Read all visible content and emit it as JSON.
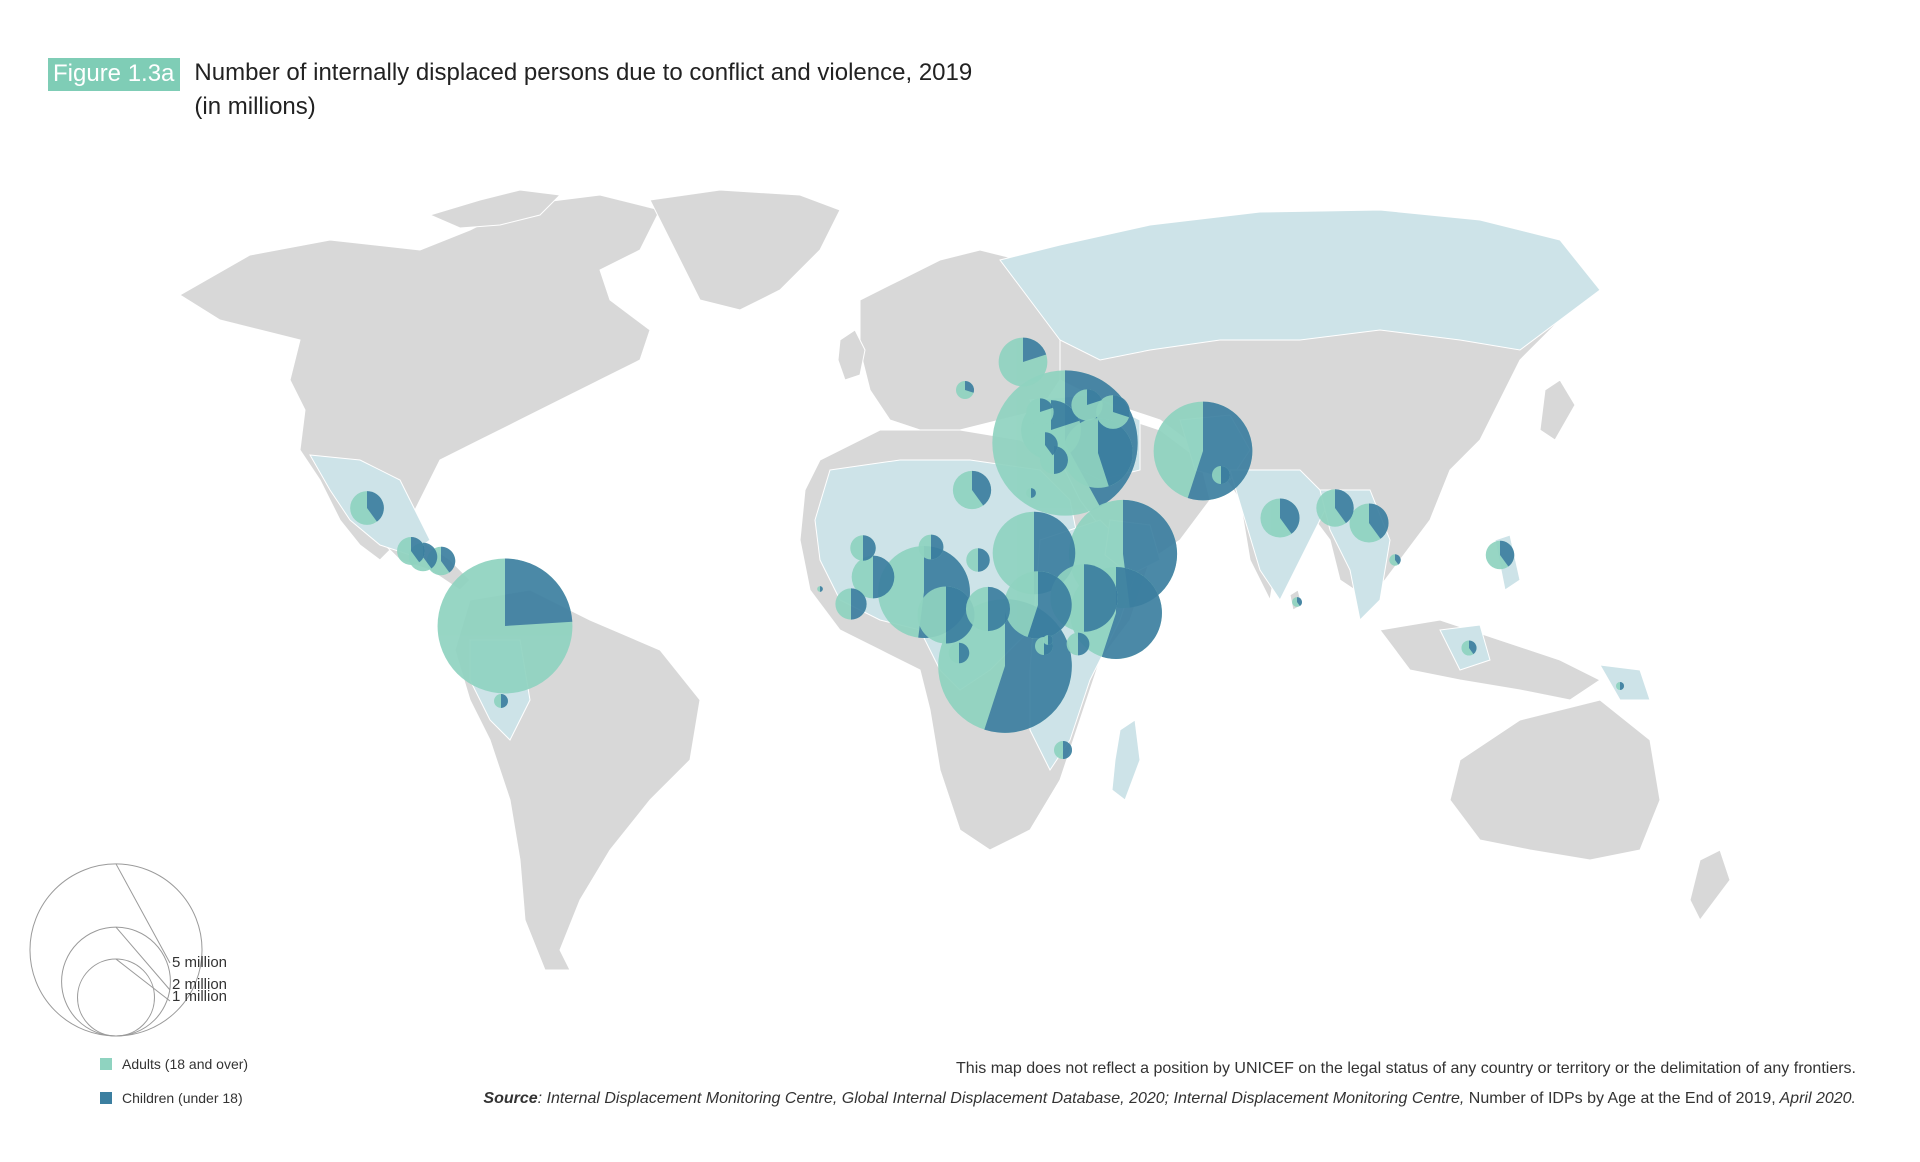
{
  "header": {
    "figure_label": "Figure 1.3a",
    "title_line1": "Number of internally displaced persons due to conflict and violence, 2019",
    "title_line2": "(in millions)"
  },
  "map": {
    "colors": {
      "land": "#d8d8d8",
      "highlight_country": "#cde3e8",
      "adults": "#8fd3c0",
      "children": "#3c7fa0",
      "border": "#ffffff"
    },
    "markers": [
      {
        "country": "Colombia",
        "total_millions": 5.6,
        "children_share": 0.24
      },
      {
        "country": "Syria",
        "total_millions": 6.5,
        "children_share": 0.42
      },
      {
        "country": "Democratic Republic of the Congo",
        "total_millions": 5.5,
        "children_share": 0.55
      },
      {
        "country": "Yemen",
        "total_millions": 3.6,
        "children_share": 0.48
      },
      {
        "country": "Afghanistan",
        "total_millions": 3.0,
        "children_share": 0.55
      },
      {
        "country": "Somalia",
        "total_millions": 2.6,
        "children_share": 0.55
      },
      {
        "country": "Nigeria",
        "total_millions": 2.6,
        "children_share": 0.52
      },
      {
        "country": "Sudan",
        "total_millions": 2.1,
        "children_share": 0.5
      },
      {
        "country": "Ethiopia",
        "total_millions": 1.4,
        "children_share": 0.5
      },
      {
        "country": "South Sudan",
        "total_millions": 1.4,
        "children_share": 0.55
      },
      {
        "country": "Iraq",
        "total_millions": 1.5,
        "children_share": 0.45
      },
      {
        "country": "Turkey",
        "total_millions": 1.1,
        "children_share": 0.2
      },
      {
        "country": "Cameroon",
        "total_millions": 1.0,
        "children_share": 0.5
      },
      {
        "country": "Central African Republic",
        "total_millions": 0.6,
        "children_share": 0.5
      },
      {
        "country": "Burkina Faso",
        "total_millions": 0.56,
        "children_share": 0.5
      },
      {
        "country": "Ukraine",
        "total_millions": 0.73,
        "children_share": 0.2
      },
      {
        "country": "Myanmar",
        "total_millions": 0.47,
        "children_share": 0.4
      },
      {
        "country": "Bangladesh",
        "total_millions": 0.43,
        "children_share": 0.4
      },
      {
        "country": "India",
        "total_millions": 0.47,
        "children_share": 0.4
      },
      {
        "country": "Libya",
        "total_millions": 0.45,
        "children_share": 0.4
      },
      {
        "country": "Mexico",
        "total_millions": 0.35,
        "children_share": 0.4
      },
      {
        "country": "Mali",
        "total_millions": 0.2,
        "children_share": 0.5
      },
      {
        "country": "Chad",
        "total_millions": 0.17,
        "children_share": 0.5
      },
      {
        "country": "Niger",
        "total_millions": 0.19,
        "children_share": 0.5
      },
      {
        "country": "Azerbaijan",
        "total_millions": 0.35,
        "children_share": 0.3
      },
      {
        "country": "Georgia",
        "total_millions": 0.3,
        "children_share": 0.2
      },
      {
        "country": "Cyprus",
        "total_millions": 0.23,
        "children_share": 0.2
      },
      {
        "country": "Palestine",
        "total_millions": 0.24,
        "children_share": 0.5
      },
      {
        "country": "Lebanon",
        "total_millions": 0.2,
        "children_share": 0.4
      },
      {
        "country": "Philippines",
        "total_millions": 0.25,
        "children_share": 0.4
      },
      {
        "country": "Honduras",
        "total_millions": 0.25,
        "children_share": 0.4
      },
      {
        "country": "El Salvador",
        "total_millions": 0.25,
        "children_share": 0.4
      },
      {
        "country": "Guatemala",
        "total_millions": 0.24,
        "children_share": 0.4
      },
      {
        "country": "Mozambique",
        "total_millions": 0.1,
        "children_share": 0.5
      },
      {
        "country": "Burundi",
        "total_millions": 0.1,
        "children_share": 0.5
      },
      {
        "country": "Kenya",
        "total_millions": 0.16,
        "children_share": 0.5
      },
      {
        "country": "Uganda",
        "total_millions": 0.03,
        "children_share": 0.5
      },
      {
        "country": "Congo",
        "total_millions": 0.13,
        "children_share": 0.5
      },
      {
        "country": "Cote d'Ivoire",
        "total_millions": 0.3,
        "children_share": 0.5
      },
      {
        "country": "Senegal",
        "total_millions": 0.01,
        "children_share": 0.5
      },
      {
        "country": "Bosnia and Herzegovina",
        "total_millions": 0.1,
        "children_share": 0.3
      },
      {
        "country": "Egypt",
        "total_millions": 0.03,
        "children_share": 0.5
      },
      {
        "country": "Peru",
        "total_millions": 0.06,
        "children_share": 0.5
      },
      {
        "country": "Indonesia",
        "total_millions": 0.07,
        "children_share": 0.4
      },
      {
        "country": "Papua New Guinea",
        "total_millions": 0.02,
        "children_share": 0.5
      },
      {
        "country": "Pakistan",
        "total_millions": 0.1,
        "children_share": 0.5
      },
      {
        "country": "Sri Lanka",
        "total_millions": 0.03,
        "children_share": 0.4
      },
      {
        "country": "Thailand",
        "total_millions": 0.04,
        "children_share": 0.4
      }
    ]
  },
  "legend": {
    "sizes": [
      {
        "label": "5 million",
        "value_millions": 5
      },
      {
        "label": "2 million",
        "value_millions": 2
      },
      {
        "label": "1 million",
        "value_millions": 1
      }
    ],
    "adults_label": "Adults (18 and over)",
    "children_label": "Children (under 18)"
  },
  "footer": {
    "disclaimer": "This map does not reflect a position by UNICEF on the legal status of any country or territory or the delimitation of any frontiers.",
    "source_label": "Source",
    "source_part1": ": Internal Displacement Monitoring Centre, Global Internal Displacement Database, 2020; Internal Displacement Monitoring Centre,",
    "source_part2": " Number of IDPs by Age at the End of 2019,",
    "source_part3": " April 2020."
  }
}
